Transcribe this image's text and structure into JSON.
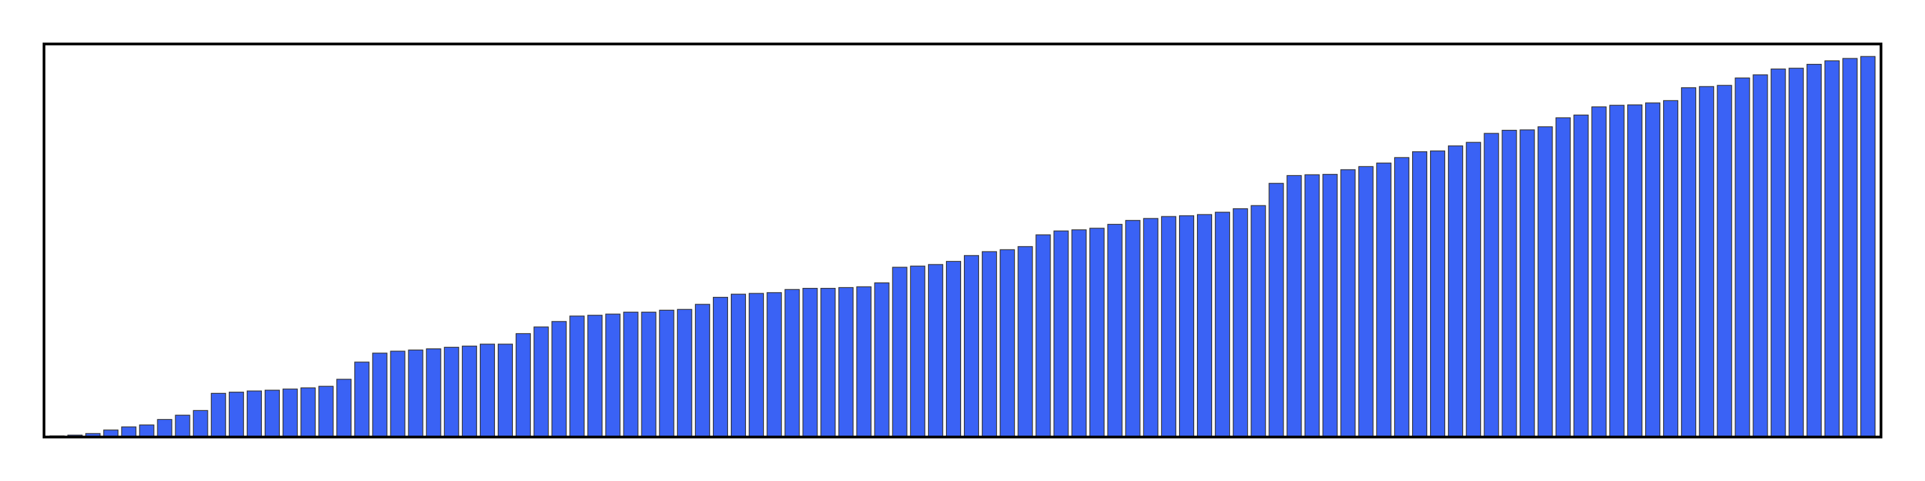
{
  "chart_data": {
    "type": "bar",
    "title": "",
    "xlabel": "",
    "ylabel": "",
    "ylim": [
      0,
      100
    ],
    "grid": false,
    "legend": "none",
    "bar_color": "#3a62f5",
    "bar_edge_color": "#333333",
    "frame_color": "#000000",
    "values": [
      0.3,
      0.5,
      0.9,
      1.8,
      2.6,
      3.1,
      4.5,
      5.6,
      6.8,
      11.2,
      11.5,
      11.8,
      12.0,
      12.3,
      12.6,
      13.0,
      14.8,
      19.2,
      21.5,
      22.0,
      22.3,
      22.6,
      23.0,
      23.3,
      23.8,
      23.8,
      26.5,
      28.2,
      29.6,
      31.0,
      31.2,
      31.5,
      32.0,
      32.0,
      32.5,
      32.7,
      34.0,
      35.8,
      36.6,
      36.8,
      37.0,
      37.8,
      38.1,
      38.1,
      38.3,
      38.5,
      39.5,
      43.5,
      43.8,
      44.2,
      45.0,
      46.5,
      47.5,
      48.0,
      48.8,
      51.8,
      52.8,
      53.1,
      53.5,
      54.5,
      55.5,
      56.0,
      56.5,
      56.7,
      57.0,
      57.6,
      58.5,
      59.3,
      65.0,
      67.0,
      67.2,
      67.3,
      68.5,
      69.3,
      70.2,
      71.6,
      73.1,
      73.3,
      74.6,
      75.5,
      77.8,
      78.6,
      78.7,
      79.5,
      81.8,
      82.5,
      84.6,
      85.0,
      85.1,
      85.6,
      86.2,
      89.5,
      89.8,
      90.1,
      92.0,
      92.8,
      94.3,
      94.5,
      95.5,
      96.4,
      97.0,
      97.5
    ]
  }
}
